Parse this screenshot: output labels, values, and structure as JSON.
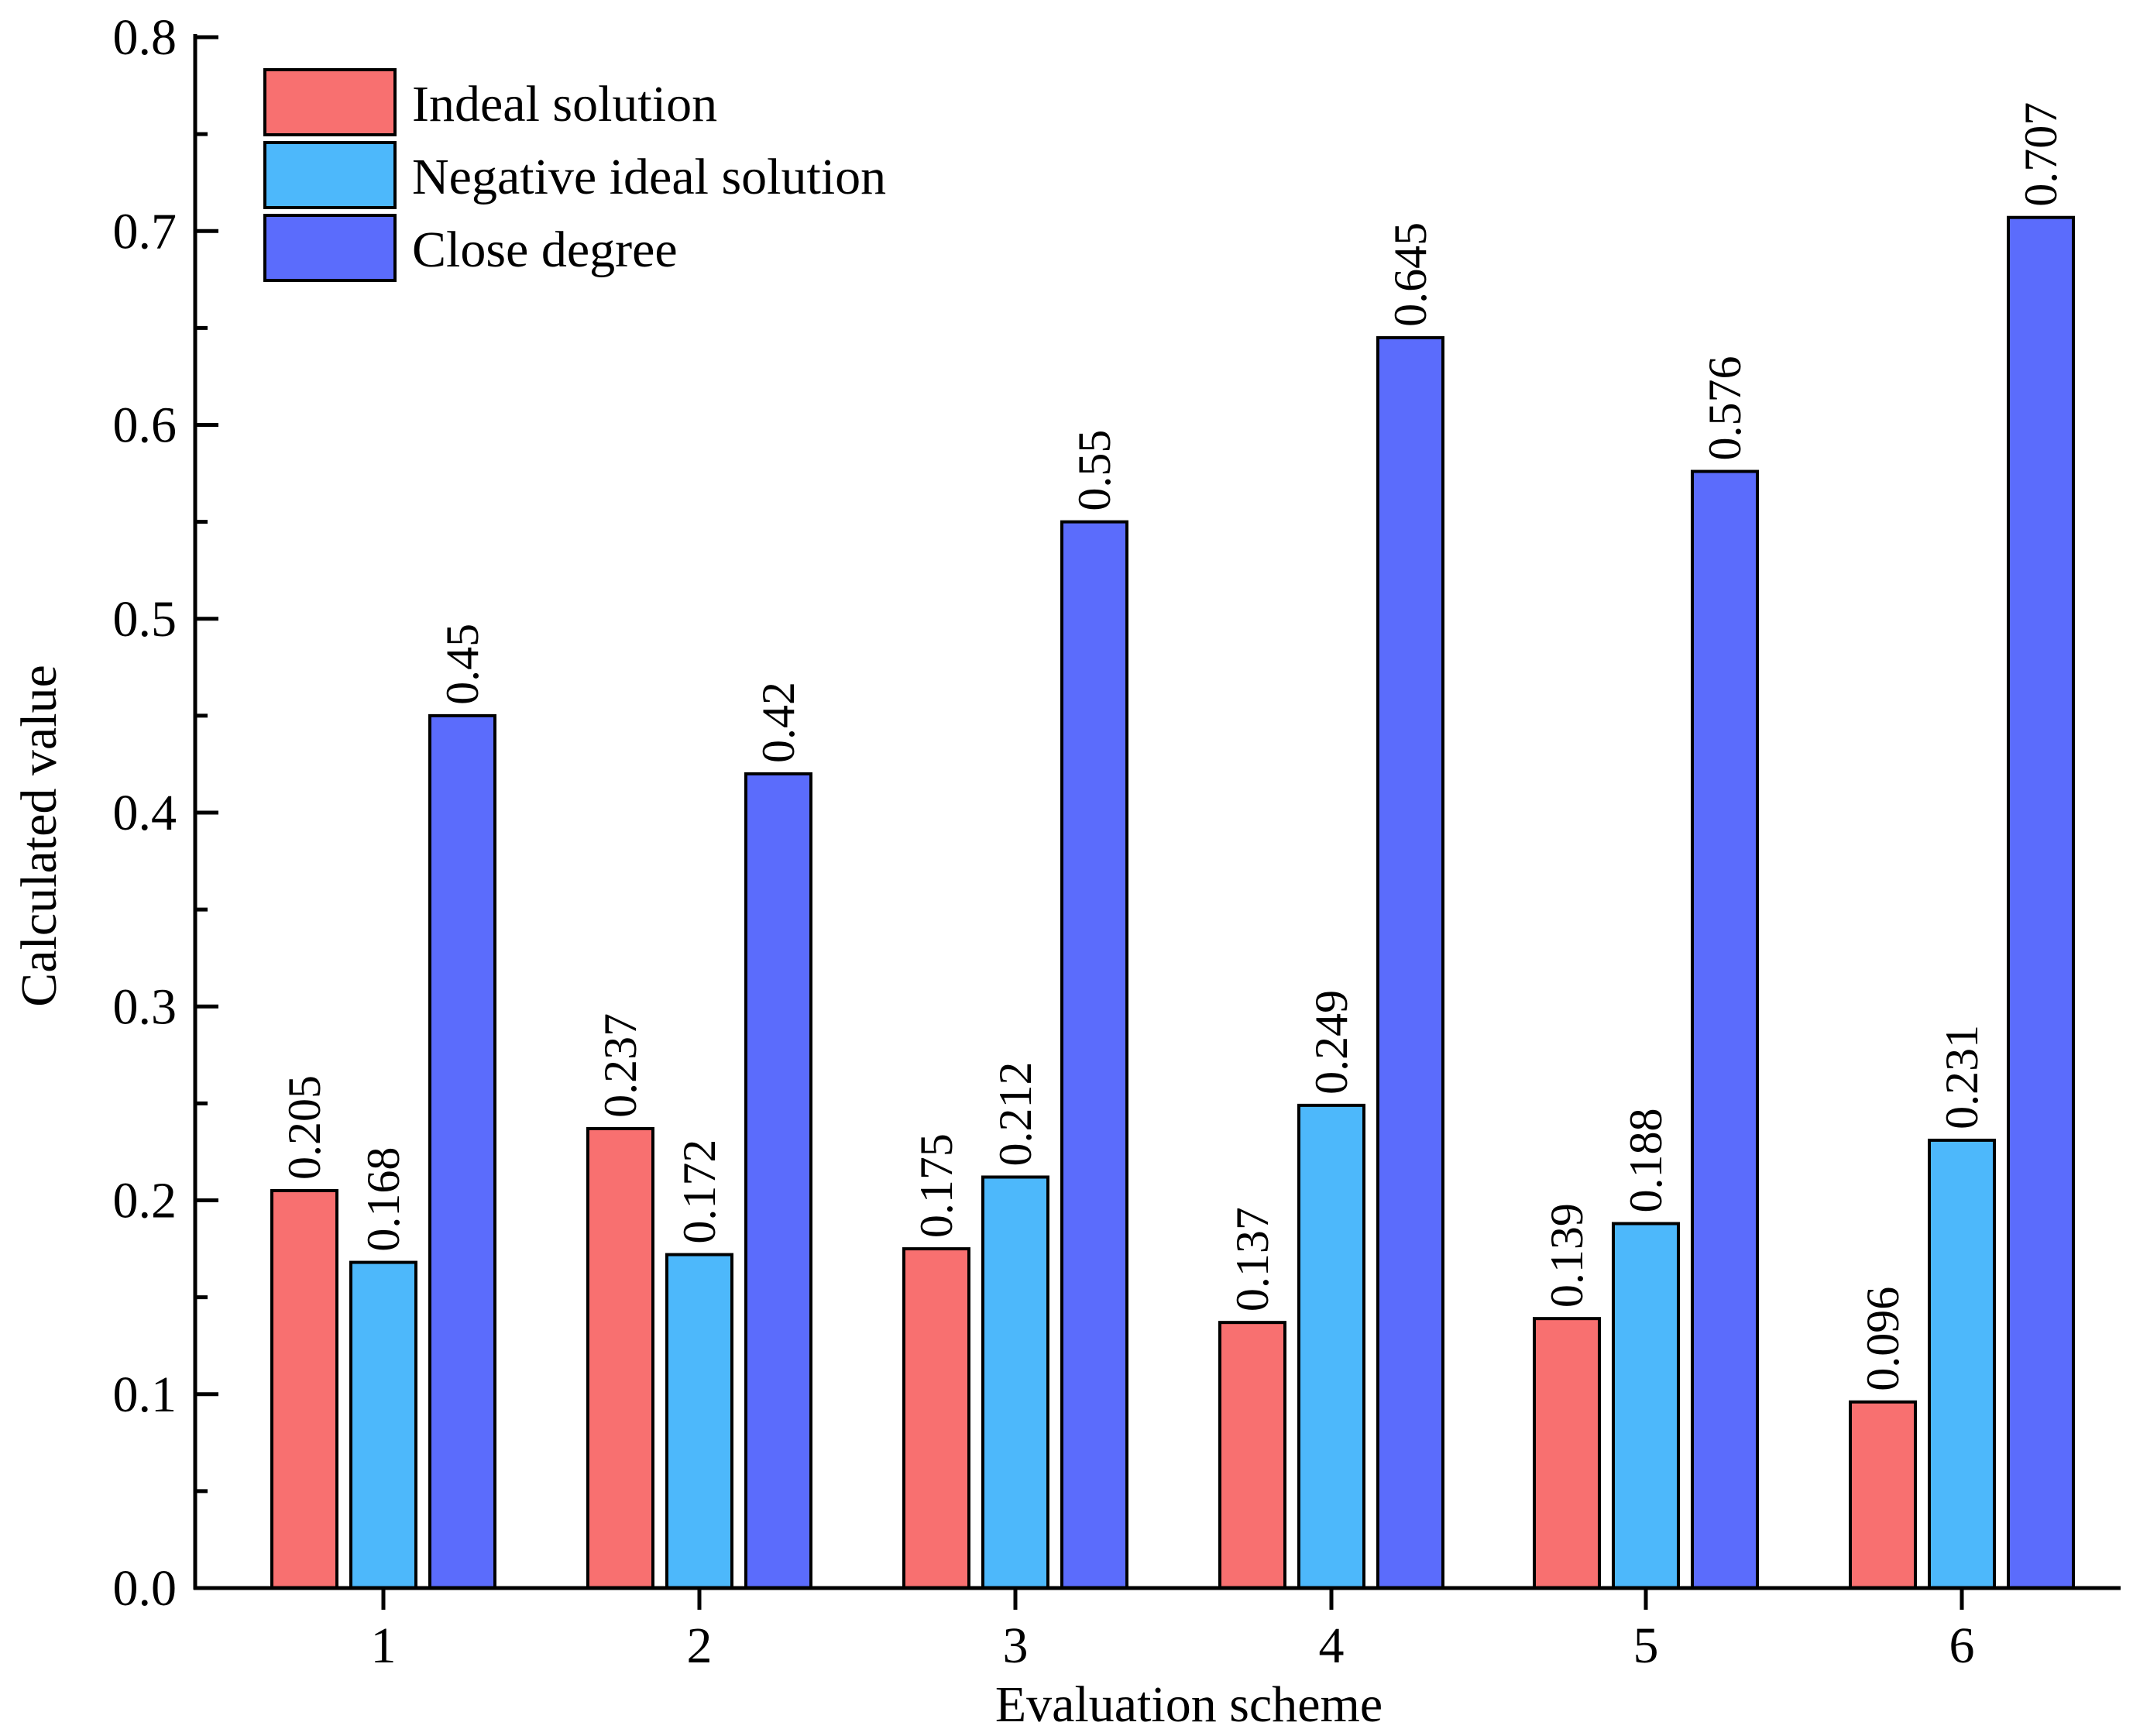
{
  "chart_data": {
    "type": "bar",
    "title": "",
    "xlabel": "Evaluation scheme",
    "ylabel": "Calculated value",
    "categories": [
      "1",
      "2",
      "3",
      "4",
      "5",
      "6"
    ],
    "series": [
      {
        "name": "Indeal solution",
        "color": "#f87070",
        "values": [
          0.205,
          0.237,
          0.175,
          0.137,
          0.139,
          0.096
        ],
        "labels": [
          "0.205",
          "0.237",
          "0.175",
          "0.137",
          "0.139",
          "0.096"
        ]
      },
      {
        "name": "Negative ideal solution",
        "color": "#4db8fb",
        "values": [
          0.168,
          0.172,
          0.212,
          0.249,
          0.188,
          0.231
        ],
        "labels": [
          "0.168",
          "0.172",
          "0.212",
          "0.249",
          "0.188",
          "0.231"
        ]
      },
      {
        "name": "Close degree",
        "color": "#5b6cfc",
        "values": [
          0.45,
          0.42,
          0.55,
          0.645,
          0.576,
          0.707
        ],
        "labels": [
          "0.45",
          "0.42",
          "0.55",
          "0.645",
          "0.576",
          "0.707"
        ]
      }
    ],
    "ylim": [
      0,
      0.8
    ],
    "yticks": [
      0,
      0.1,
      0.2,
      0.3,
      0.4,
      0.5,
      0.6,
      0.7,
      0.8
    ],
    "ytick_labels": [
      "0.0",
      "0.1",
      "0.2",
      "0.3",
      "0.4",
      "0.5",
      "0.6",
      "0.7",
      "0.8"
    ],
    "grid": false,
    "legend_position": "top-left"
  }
}
